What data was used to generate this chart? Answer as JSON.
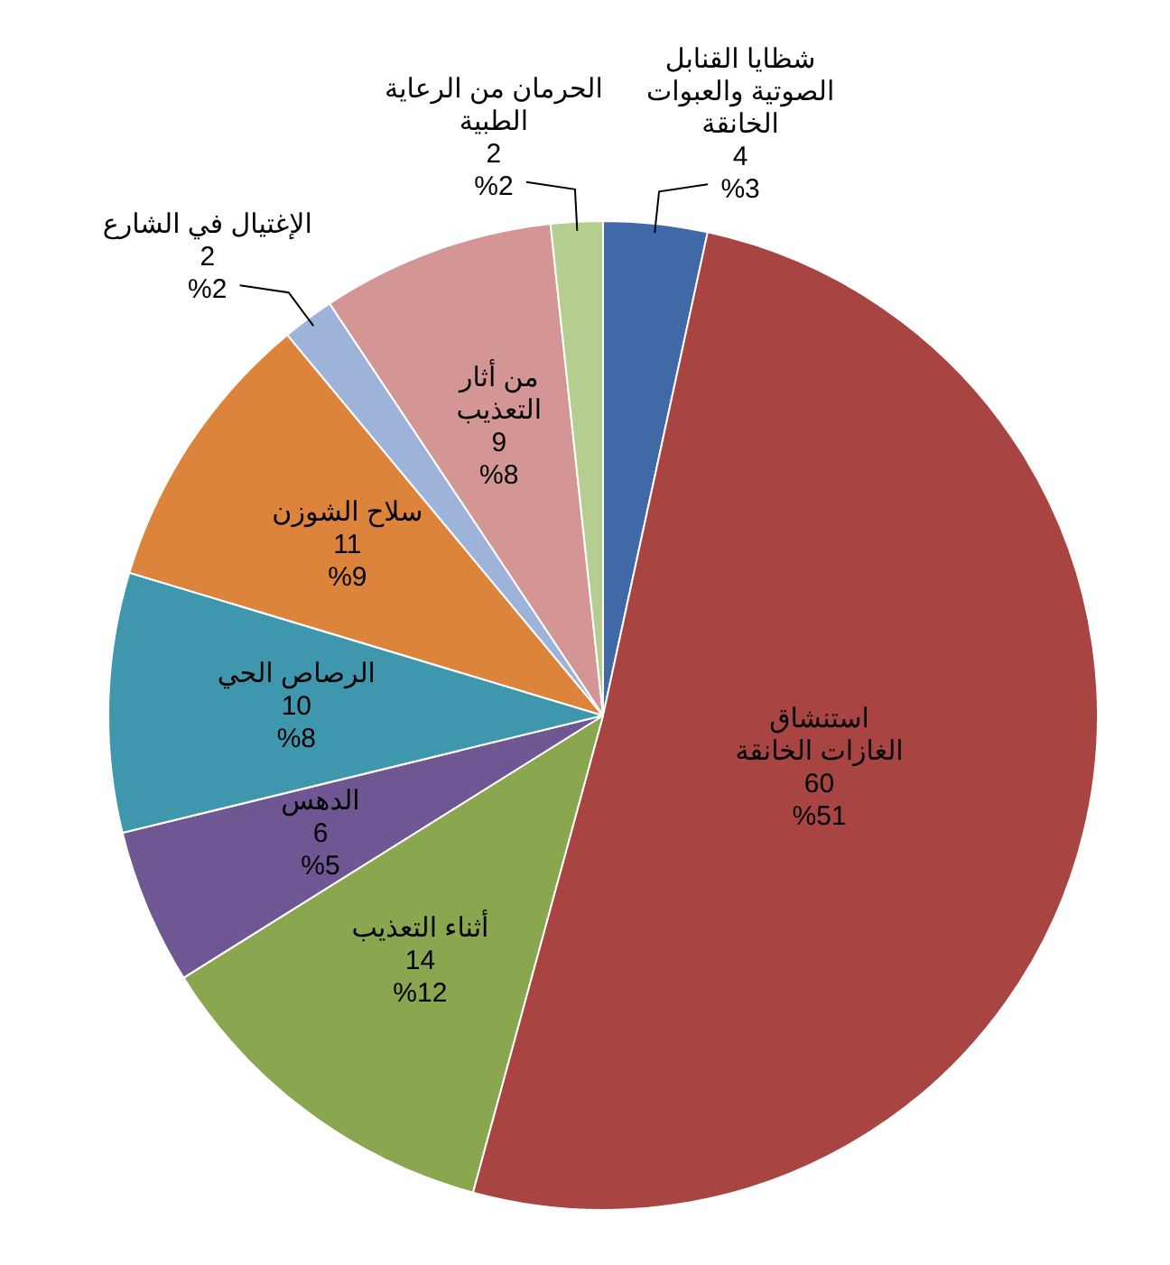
{
  "chart_data": {
    "type": "pie",
    "categories": [
      "شظايا القنابل الصوتية والعبوات الخانقة",
      "استنشاق الغازات الخانقة",
      "أثناء التعذيب",
      "الدهس",
      "الرصاص الحي",
      "سلاح الشوزن",
      "الإغتيال في الشارع",
      "من أثار التعذيب",
      "الحرمان من الرعاية الطبية"
    ],
    "values": [
      4,
      60,
      14,
      6,
      10,
      11,
      2,
      9,
      2
    ],
    "colors": [
      "#4169a8",
      "#a84542",
      "#8aa64e",
      "#6f5794",
      "#3f97ad",
      "#dc843b",
      "#9eb3d9",
      "#d39695",
      "#b5cd8f"
    ],
    "value_labels": [
      "4\n%3",
      "60\n%51",
      "14\n%12",
      "6\n%5",
      "10\n%8",
      "11\n%9",
      "2\n%2",
      "9\n%8",
      "2\n%2"
    ],
    "legend": false
  }
}
